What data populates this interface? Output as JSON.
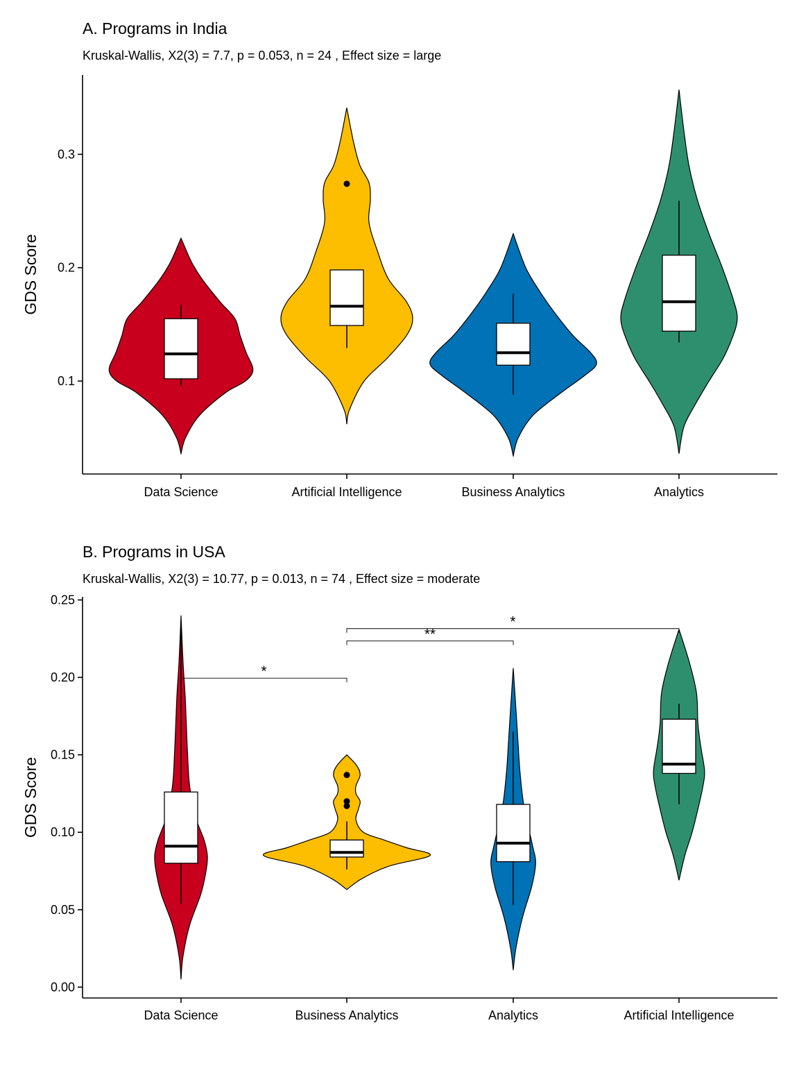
{
  "chart_data": [
    {
      "type": "violin",
      "title": "A. Programs in India",
      "subtitle": "Kruskal-Wallis, X2(3) = 7.7, p = 0.053, n = 24 , Effect size = large",
      "xlabel": "",
      "ylabel": "GDS Score",
      "ylim": [
        0.018,
        0.37
      ],
      "yticks": [
        "0.1",
        "0.2",
        "0.3"
      ],
      "ytick_values": [
        0.1,
        0.2,
        0.3
      ],
      "grid": false,
      "legend": "none",
      "categories": [
        "Data Science",
        "Artificial Intelligence",
        "Business Analytics",
        "Analytics"
      ],
      "colors": [
        "#C8001E",
        "#FDBE00",
        "#0072B5",
        "#2E8F6E"
      ],
      "groups": [
        {
          "name": "Data Science",
          "violin": [
            [
              0.036,
              0
            ],
            [
              0.05,
              0.06
            ],
            [
              0.07,
              0.25
            ],
            [
              0.09,
              0.6
            ],
            [
              0.1,
              0.86
            ],
            [
              0.11,
              0.96
            ],
            [
              0.125,
              0.87
            ],
            [
              0.14,
              0.79
            ],
            [
              0.155,
              0.72
            ],
            [
              0.17,
              0.52
            ],
            [
              0.19,
              0.28
            ],
            [
              0.205,
              0.14
            ],
            [
              0.226,
              0
            ]
          ],
          "box": {
            "whisker_low": 0.096,
            "q1": 0.102,
            "median": 0.124,
            "q3": 0.155,
            "whisker_high": 0.167
          },
          "outliers": []
        },
        {
          "name": "Artificial Intelligence",
          "violin": [
            [
              0.062,
              0
            ],
            [
              0.075,
              0.04
            ],
            [
              0.1,
              0.25
            ],
            [
              0.12,
              0.58
            ],
            [
              0.14,
              0.86
            ],
            [
              0.155,
              0.95
            ],
            [
              0.17,
              0.86
            ],
            [
              0.19,
              0.6
            ],
            [
              0.215,
              0.44
            ],
            [
              0.24,
              0.32
            ],
            [
              0.26,
              0.34
            ],
            [
              0.275,
              0.32
            ],
            [
              0.29,
              0.19
            ],
            [
              0.31,
              0.1
            ],
            [
              0.341,
              0
            ]
          ],
          "box": {
            "whisker_low": 0.129,
            "q1": 0.149,
            "median": 0.166,
            "q3": 0.198,
            "whisker_high": 0.198
          },
          "outliers": [
            0.274
          ]
        },
        {
          "name": "Business Analytics",
          "violin": [
            [
              0.034,
              0
            ],
            [
              0.05,
              0.06
            ],
            [
              0.07,
              0.24
            ],
            [
              0.09,
              0.58
            ],
            [
              0.105,
              0.86
            ],
            [
              0.115,
              1.0
            ],
            [
              0.125,
              0.93
            ],
            [
              0.14,
              0.72
            ],
            [
              0.16,
              0.5
            ],
            [
              0.18,
              0.31
            ],
            [
              0.2,
              0.15
            ],
            [
              0.23,
              0
            ]
          ],
          "box": {
            "whisker_low": 0.088,
            "q1": 0.114,
            "median": 0.125,
            "q3": 0.151,
            "whisker_high": 0.177
          },
          "outliers": []
        },
        {
          "name": "Analytics",
          "violin": [
            [
              0.036,
              0
            ],
            [
              0.06,
              0.06
            ],
            [
              0.08,
              0.2
            ],
            [
              0.1,
              0.36
            ],
            [
              0.12,
              0.53
            ],
            [
              0.14,
              0.65
            ],
            [
              0.155,
              0.7
            ],
            [
              0.17,
              0.66
            ],
            [
              0.2,
              0.52
            ],
            [
              0.23,
              0.36
            ],
            [
              0.26,
              0.22
            ],
            [
              0.29,
              0.12
            ],
            [
              0.32,
              0.06
            ],
            [
              0.357,
              0
            ]
          ],
          "box": {
            "whisker_low": 0.134,
            "q1": 0.144,
            "median": 0.17,
            "q3": 0.211,
            "whisker_high": 0.259
          },
          "outliers": []
        }
      ],
      "comparisons": []
    },
    {
      "type": "violin",
      "title": "B. Programs in USA",
      "subtitle": "Kruskal-Wallis, X2(3) = 10.77, p = 0.013, n = 74 , Effect size = moderate",
      "xlabel": "",
      "ylabel": "GDS Score",
      "ylim": [
        -0.007,
        0.252
      ],
      "yticks": [
        "0.00",
        "0.05",
        "0.10",
        "0.15",
        "0.20",
        "0.25"
      ],
      "ytick_values": [
        0.0,
        0.05,
        0.1,
        0.15,
        0.2,
        0.25
      ],
      "grid": false,
      "legend": "none",
      "categories": [
        "Data Science",
        "Business Analytics",
        "Analytics",
        "Artificial Intelligence"
      ],
      "colors": [
        "#C8001E",
        "#FDBE00",
        "#0072B5",
        "#2E8F6E"
      ],
      "groups": [
        {
          "name": "Data Science",
          "violin": [
            [
              0.005,
              0
            ],
            [
              0.02,
              0.03
            ],
            [
              0.04,
              0.13
            ],
            [
              0.06,
              0.3
            ],
            [
              0.075,
              0.38
            ],
            [
              0.085,
              0.4
            ],
            [
              0.095,
              0.35
            ],
            [
              0.11,
              0.22
            ],
            [
              0.13,
              0.13
            ],
            [
              0.15,
              0.1
            ],
            [
              0.17,
              0.08
            ],
            [
              0.19,
              0.06
            ],
            [
              0.21,
              0.03
            ],
            [
              0.24,
              0
            ]
          ],
          "box": {
            "whisker_low": 0.054,
            "q1": 0.08,
            "median": 0.091,
            "q3": 0.126,
            "whisker_high": 0.232
          },
          "outliers": []
        },
        {
          "name": "Business Analytics",
          "violin": [
            [
              0.063,
              0
            ],
            [
              0.07,
              0.18
            ],
            [
              0.078,
              0.5
            ],
            [
              0.085,
              1.0
            ],
            [
              0.09,
              0.72
            ],
            [
              0.095,
              0.45
            ],
            [
              0.1,
              0.2
            ],
            [
              0.108,
              0.11
            ],
            [
              0.115,
              0.14
            ],
            [
              0.12,
              0.16
            ],
            [
              0.125,
              0.11
            ],
            [
              0.13,
              0.11
            ],
            [
              0.137,
              0.16
            ],
            [
              0.143,
              0.12
            ],
            [
              0.15,
              0
            ]
          ],
          "box": {
            "whisker_low": 0.076,
            "q1": 0.084,
            "median": 0.087,
            "q3": 0.095,
            "whisker_high": 0.107
          },
          "outliers": [
            0.117,
            0.12,
            0.137
          ]
        },
        {
          "name": "Analytics",
          "violin": [
            [
              0.011,
              0
            ],
            [
              0.025,
              0.04
            ],
            [
              0.045,
              0.14
            ],
            [
              0.065,
              0.28
            ],
            [
              0.08,
              0.34
            ],
            [
              0.09,
              0.3
            ],
            [
              0.105,
              0.22
            ],
            [
              0.12,
              0.15
            ],
            [
              0.14,
              0.1
            ],
            [
              0.16,
              0.07
            ],
            [
              0.18,
              0.04
            ],
            [
              0.206,
              0
            ]
          ],
          "box": {
            "whisker_low": 0.053,
            "q1": 0.081,
            "median": 0.093,
            "q3": 0.118,
            "whisker_high": 0.165
          },
          "outliers": []
        },
        {
          "name": "Artificial Intelligence",
          "violin": [
            [
              0.069,
              0
            ],
            [
              0.085,
              0.08
            ],
            [
              0.1,
              0.18
            ],
            [
              0.115,
              0.26
            ],
            [
              0.13,
              0.33
            ],
            [
              0.14,
              0.35
            ],
            [
              0.155,
              0.3
            ],
            [
              0.17,
              0.26
            ],
            [
              0.19,
              0.24
            ],
            [
              0.21,
              0.14
            ],
            [
              0.231,
              0
            ]
          ],
          "box": {
            "whisker_low": 0.118,
            "q1": 0.138,
            "median": 0.144,
            "q3": 0.173,
            "whisker_high": 0.183
          },
          "outliers": []
        }
      ],
      "comparisons": [
        {
          "from": 0,
          "to": 1,
          "y": 0.1995,
          "label": "*"
        },
        {
          "from": 1,
          "to": 2,
          "y": 0.2235,
          "label": "**"
        },
        {
          "from": 1,
          "to": 3,
          "y": 0.2315,
          "label": "*"
        }
      ]
    }
  ]
}
